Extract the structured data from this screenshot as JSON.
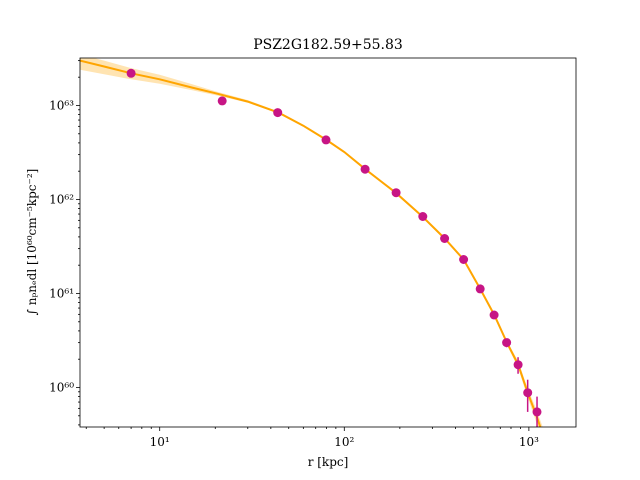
{
  "chart_data": {
    "type": "scatter",
    "title": "PSZ2G182.59+55.83",
    "xlabel": "r [kpc]",
    "ylabel": "∫ nₚnₑdl [10⁶⁰cm⁻⁵kpc⁻²]",
    "x_scale": "log",
    "y_scale": "log",
    "xlim": [
      3.7,
      1800
    ],
    "ylim": [
      3.8e+59,
      3.2e+63
    ],
    "grid": false,
    "legend": "none",
    "x_ticks": [
      {
        "value": 10,
        "label": "10¹"
      },
      {
        "value": 100,
        "label": "10²"
      },
      {
        "value": 1000,
        "label": "10³"
      }
    ],
    "y_ticks": [
      {
        "value": 1e+60,
        "label": "10⁶⁰"
      },
      {
        "value": 1e+61,
        "label": "10⁶¹"
      },
      {
        "value": 1e+62,
        "label": "10⁶²"
      },
      {
        "value": 1e+63,
        "label": "10⁶³"
      }
    ],
    "colors": {
      "points": "#c71585",
      "model": "#ffa500",
      "band": "#ffa500"
    },
    "series": [
      {
        "kind": "points",
        "x": [
          7.0,
          21.8,
          43.6,
          79.6,
          129.7,
          190.9,
          266.1,
          349.5,
          442.9,
          544.6,
          647.8,
          757.5,
          873.8,
          985.0,
          1107.0
        ],
        "y": [
          2.2e+63,
          1.12e+63,
          8.4e+62,
          4.3e+62,
          2.1e+62,
          1.18e+62,
          6.6e+61,
          3.85e+61,
          2.3e+61,
          1.12e+61,
          5.9e+60,
          3e+60,
          1.75e+60,
          8.8e+59,
          5.5e+59
        ],
        "yerr_low": [
          0,
          0,
          0,
          0,
          0,
          0,
          0,
          0,
          0,
          0,
          0,
          3.2e+59,
          3.5e+59,
          3.3e+59,
          2.5e+59
        ],
        "yerr_high": [
          0,
          0,
          0,
          0,
          0,
          0,
          0,
          0,
          0,
          0,
          0,
          3.2e+59,
          3.5e+59,
          3.3e+59,
          2.5e+59
        ]
      },
      {
        "kind": "model",
        "x": [
          3.7,
          5,
          7,
          10,
          15,
          20,
          30,
          44,
          60,
          80,
          100,
          130,
          190,
          265,
          350,
          443,
          545,
          650,
          760,
          875,
          985,
          1100,
          1200
        ],
        "y": [
          3e+63,
          2.6e+63,
          2.2e+63,
          1.9e+63,
          1.55e+63,
          1.35e+63,
          1.1e+63,
          8.4e+62,
          6.1e+62,
          4.3e+62,
          3.2e+62,
          2.1e+62,
          1.18e+62,
          6.6e+61,
          3.85e+61,
          2.3e+61,
          1.12e+61,
          5.9e+60,
          3e+60,
          1.75e+60,
          8.8e+59,
          5e+59,
          3e+59
        ],
        "y_low": [
          2.4e+63,
          2.15e+63,
          1.9e+63,
          1.7e+63,
          1.45e+63,
          1.29e+63,
          1.07e+63,
          8.2e+62,
          6e+62,
          4.25e+62,
          3.17e+62,
          2.08e+62,
          1.17e+62,
          6.55e+61,
          3.8e+61,
          2.26e+61,
          1.09e+61,
          5.7e+60,
          2.85e+60,
          1.6e+60,
          7.8e+59,
          4.2e+59,
          2.4e+59
        ],
        "y_high": [
          3.5e+63,
          3e+63,
          2.5e+63,
          2.12e+63,
          1.68e+63,
          1.42e+63,
          1.14e+63,
          8.6e+62,
          6.2e+62,
          4.35e+62,
          3.23e+62,
          2.12e+62,
          1.19e+62,
          6.65e+61,
          3.9e+61,
          2.34e+61,
          1.15e+61,
          6.1e+60,
          3.15e+60,
          1.9e+60,
          9.8e+59,
          5.8e+59,
          3.6e+59
        ]
      }
    ]
  }
}
